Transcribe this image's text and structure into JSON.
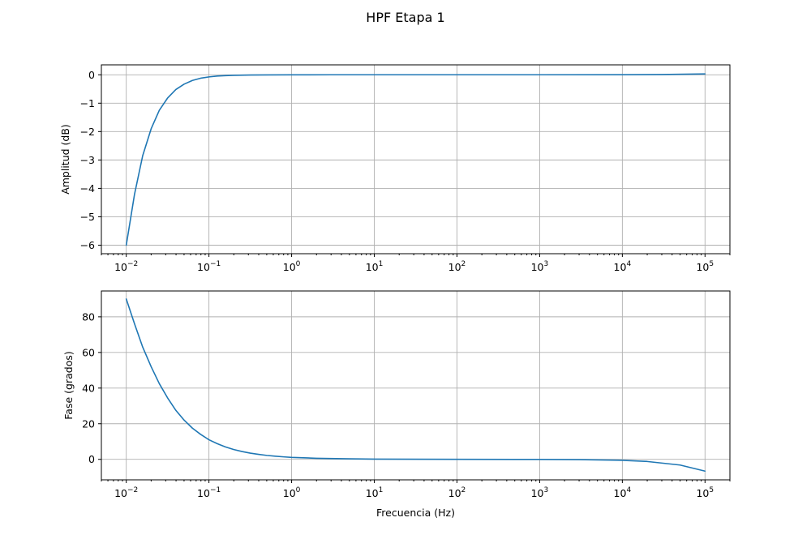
{
  "chart_data": {
    "title": "HPF Etapa 1",
    "type": "line",
    "x_scale": "log",
    "series_color": "#1f77b4",
    "grid": true,
    "subplots": [
      {
        "id": "amplitude",
        "xlabel": "",
        "ylabel": "Amplitud (dB)",
        "xlim": [
          0.005,
          200000
        ],
        "ylim": [
          -6.3,
          0.35
        ],
        "x_ticks": [
          0.01,
          0.1,
          1,
          10,
          100,
          1000,
          10000,
          100000
        ],
        "x_tick_labels": [
          {
            "base": "10",
            "exp": "−2"
          },
          {
            "base": "10",
            "exp": "−1"
          },
          {
            "base": "10",
            "exp": "0"
          },
          {
            "base": "10",
            "exp": "1"
          },
          {
            "base": "10",
            "exp": "2"
          },
          {
            "base": "10",
            "exp": "3"
          },
          {
            "base": "10",
            "exp": "4"
          },
          {
            "base": "10",
            "exp": "5"
          }
        ],
        "y_ticks": [
          0,
          -1,
          -2,
          -3,
          -4,
          -5,
          -6
        ],
        "y_tick_labels": [
          "0",
          "−1",
          "−2",
          "−3",
          "−4",
          "−5",
          "−6"
        ],
        "x": [
          0.01,
          0.0126,
          0.0158,
          0.02,
          0.0251,
          0.0316,
          0.0398,
          0.0501,
          0.0631,
          0.0794,
          0.1,
          0.126,
          0.158,
          0.2,
          0.316,
          0.5,
          1,
          3,
          10,
          100,
          1000,
          10000,
          30000,
          100000
        ],
        "y": [
          -6.0,
          -4.2,
          -2.85,
          -1.9,
          -1.25,
          -0.82,
          -0.52,
          -0.33,
          -0.2,
          -0.12,
          -0.075,
          -0.045,
          -0.03,
          -0.02,
          -0.01,
          -0.005,
          -0.002,
          0,
          0,
          0,
          0,
          0.003,
          0.01,
          0.03
        ]
      },
      {
        "id": "phase",
        "xlabel": "Frecuencia (Hz)",
        "ylabel": "Fase (grados)",
        "xlim": [
          0.005,
          200000
        ],
        "ylim": [
          -11.5,
          94.5
        ],
        "x_ticks": [
          0.01,
          0.1,
          1,
          10,
          100,
          1000,
          10000,
          100000
        ],
        "x_tick_labels": [
          {
            "base": "10",
            "exp": "−2"
          },
          {
            "base": "10",
            "exp": "−1"
          },
          {
            "base": "10",
            "exp": "0"
          },
          {
            "base": "10",
            "exp": "1"
          },
          {
            "base": "10",
            "exp": "2"
          },
          {
            "base": "10",
            "exp": "3"
          },
          {
            "base": "10",
            "exp": "4"
          },
          {
            "base": "10",
            "exp": "5"
          }
        ],
        "y_ticks": [
          80,
          60,
          40,
          20,
          0
        ],
        "y_tick_labels": [
          "80",
          "60",
          "40",
          "20",
          "0"
        ],
        "x": [
          0.01,
          0.0126,
          0.0158,
          0.02,
          0.0251,
          0.0316,
          0.0398,
          0.0501,
          0.0631,
          0.0794,
          0.1,
          0.126,
          0.158,
          0.2,
          0.251,
          0.316,
          0.398,
          0.501,
          0.631,
          0.794,
          1,
          2,
          5,
          10,
          100,
          1000,
          3000,
          10000,
          20000,
          50000,
          100000
        ],
        "y": [
          90,
          76,
          63,
          52,
          42.5,
          34.5,
          27.5,
          22,
          17.5,
          14,
          11,
          8.8,
          7,
          5.5,
          4.4,
          3.5,
          2.8,
          2.2,
          1.8,
          1.4,
          1.1,
          0.6,
          0.3,
          0.15,
          0,
          -0.05,
          -0.15,
          -0.55,
          -1.2,
          -3.2,
          -6.6
        ]
      }
    ]
  }
}
